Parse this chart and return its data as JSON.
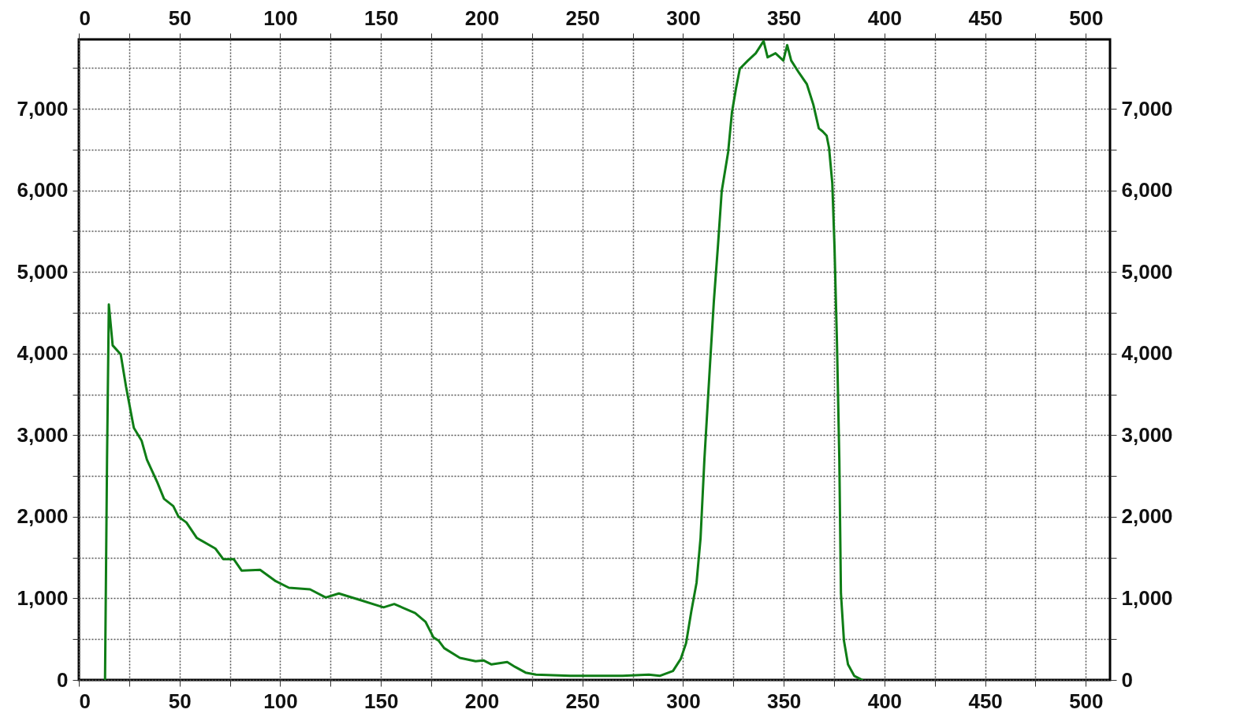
{
  "chart_data": {
    "type": "line",
    "x": [
      13,
      14,
      14.9,
      16.8,
      20.8,
      23.4,
      25.3,
      27.3,
      31.2,
      33.8,
      39,
      42.3,
      46.9,
      49.5,
      53.4,
      58.6,
      67.8,
      71.7,
      76.9,
      80.8,
      90,
      97.8,
      104.3,
      114.8,
      122.6,
      129.1,
      139.6,
      151.3,
      156.6,
      167,
      172.2,
      176.1,
      178.7,
      181.4,
      189.2,
      197,
      200.9,
      204.9,
      212.7,
      216.6,
      221.8,
      227,
      244,
      270,
      283,
      288.4,
      295,
      298.9,
      301.5,
      304.1,
      306.7,
      308.7,
      310.6,
      313.4,
      315.3,
      317.3,
      319.2,
      322.4,
      324.3,
      326.3,
      328.2,
      332.2,
      336.1,
      340,
      342,
      345.9,
      349.8,
      351.7,
      353.7,
      357.6,
      361.5,
      364.7,
      367.4,
      369.4,
      371.3,
      372.5,
      374.1,
      375.2,
      376.4,
      377.6,
      378.4,
      379.9,
      381.9,
      385,
      389
    ],
    "series": [
      {
        "color": "#0f7d16",
        "values": [
          0,
          2700,
          4600,
          4100,
          3990,
          3600,
          3350,
          3090,
          2930,
          2700,
          2420,
          2220,
          2130,
          2000,
          1930,
          1740,
          1610,
          1480,
          1480,
          1340,
          1350,
          1210,
          1130,
          1110,
          1010,
          1060,
          980,
          890,
          930,
          820,
          710,
          520,
          480,
          390,
          270,
          230,
          240,
          190,
          220,
          160,
          90,
          65,
          50,
          50,
          65,
          50,
          110,
          260,
          450,
          840,
          1190,
          1740,
          2700,
          3870,
          4640,
          5310,
          5990,
          6470,
          6960,
          7250,
          7490,
          7590,
          7680,
          7830,
          7630,
          7680,
          7590,
          7780,
          7590,
          7440,
          7300,
          7050,
          6760,
          6720,
          6670,
          6520,
          6090,
          5310,
          4160,
          2700,
          1060,
          480,
          190,
          50,
          0
        ]
      }
    ],
    "xlim": [
      0,
      512
    ],
    "xticks": [
      0,
      {
        "value": 25,
        "label": null
      },
      50,
      {
        "value": 75,
        "label": null
      },
      100,
      {
        "value": 125,
        "label": null
      },
      150,
      {
        "value": 175,
        "label": null
      },
      200,
      {
        "value": 225,
        "label": null
      },
      250,
      {
        "value": 275,
        "label": null
      },
      300,
      {
        "value": 325,
        "label": null
      },
      350,
      {
        "value": 375,
        "label": null
      },
      400,
      {
        "value": 425,
        "label": null
      },
      450,
      {
        "value": 475,
        "label": null
      },
      500
    ],
    "x2lim": [
      0,
      512
    ],
    "x2ticks": [
      0,
      {
        "value": 25,
        "label": null
      },
      50,
      {
        "value": 75,
        "label": null
      },
      100,
      {
        "value": 125,
        "label": null
      },
      150,
      {
        "value": 175,
        "label": null
      },
      200,
      {
        "value": 225,
        "label": null
      },
      250,
      {
        "value": 275,
        "label": null
      },
      300,
      {
        "value": 325,
        "label": null
      },
      350,
      {
        "value": 375,
        "label": null
      },
      400,
      {
        "value": 425,
        "label": null
      },
      450,
      {
        "value": 475,
        "label": null
      },
      500
    ],
    "ylim": [
      0,
      7850
    ],
    "yticks": [
      0,
      {
        "value": 500,
        "label": null
      },
      {
        "value": 1000,
        "label": "1,000"
      },
      {
        "value": 1500,
        "label": null
      },
      {
        "value": 2000,
        "label": "2,000"
      },
      {
        "value": 2500,
        "label": null
      },
      {
        "value": 3000,
        "label": "3,000"
      },
      {
        "value": 3500,
        "label": null
      },
      {
        "value": 4000,
        "label": "4,000"
      },
      {
        "value": 4500,
        "label": null
      },
      {
        "value": 5000,
        "label": "5,000"
      },
      {
        "value": 5500,
        "label": null
      },
      {
        "value": 6000,
        "label": "6,000"
      },
      {
        "value": 6500,
        "label": null
      },
      {
        "value": 7000,
        "label": "7,000"
      },
      {
        "value": 7500,
        "label": null
      }
    ],
    "y2lim": [
      0,
      7850
    ],
    "y2ticks": [
      0,
      {
        "value": 500,
        "label": null
      },
      {
        "value": 1000,
        "label": "1,000"
      },
      {
        "value": 1500,
        "label": null
      },
      {
        "value": 2000,
        "label": "2,000"
      },
      {
        "value": 2500,
        "label": null
      },
      {
        "value": 3000,
        "label": "3,000"
      },
      {
        "value": 3500,
        "label": null
      },
      {
        "value": 4000,
        "label": "4,000"
      },
      {
        "value": 4500,
        "label": null
      },
      {
        "value": 5000,
        "label": "5,000"
      },
      {
        "value": 5500,
        "label": null
      },
      {
        "value": 6000,
        "label": "6,000"
      },
      {
        "value": 6500,
        "label": null
      },
      {
        "value": 7000,
        "label": "7,000"
      },
      {
        "value": 7500,
        "label": null
      }
    ],
    "grid": true,
    "marker": "none",
    "line_style": "solid"
  }
}
